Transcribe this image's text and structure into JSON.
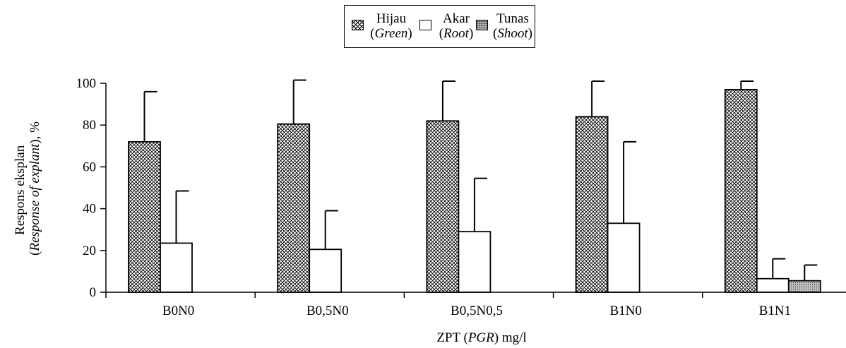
{
  "chart_data": {
    "type": "bar",
    "categories": [
      "B0N0",
      "B0,5N0",
      "B0,5N0,5",
      "B1N0",
      "B1N1"
    ],
    "series": [
      {
        "name": "Hijau (Green)",
        "key": "green",
        "values": [
          72,
          80.5,
          82,
          84,
          97
        ],
        "errors": [
          24,
          21,
          19,
          17,
          4
        ]
      },
      {
        "name": "Akar (Root)",
        "key": "root",
        "values": [
          23.5,
          20.5,
          29,
          33,
          6.5
        ],
        "errors": [
          25,
          18.5,
          25.5,
          39,
          9.5
        ]
      },
      {
        "name": "Tunas (Shoot)",
        "key": "shoot",
        "values": [
          0,
          0,
          0,
          0,
          5.5
        ],
        "errors": [
          0,
          0,
          0,
          0,
          7.5
        ]
      }
    ],
    "legend": [
      {
        "label": "Hijau",
        "sub": "Green",
        "swatch": "green"
      },
      {
        "label": "Akar",
        "sub": "Root",
        "swatch": "root"
      },
      {
        "label": "Tunas",
        "sub": "Shoot",
        "swatch": "shoot"
      }
    ],
    "xlabel_main": "ZPT (",
    "xlabel_italic": "PGR",
    "xlabel_end": ") mg/l",
    "ylabel_line1": "Respons eksplan",
    "ylabel_line2_open": "(",
    "ylabel_line2_italic": "Response of explant",
    "ylabel_line2_end": "), %",
    "ylim": [
      0,
      100
    ],
    "yticks": [
      0,
      20,
      40,
      60,
      80,
      100
    ],
    "legend_position": "top-center",
    "grid": false
  }
}
